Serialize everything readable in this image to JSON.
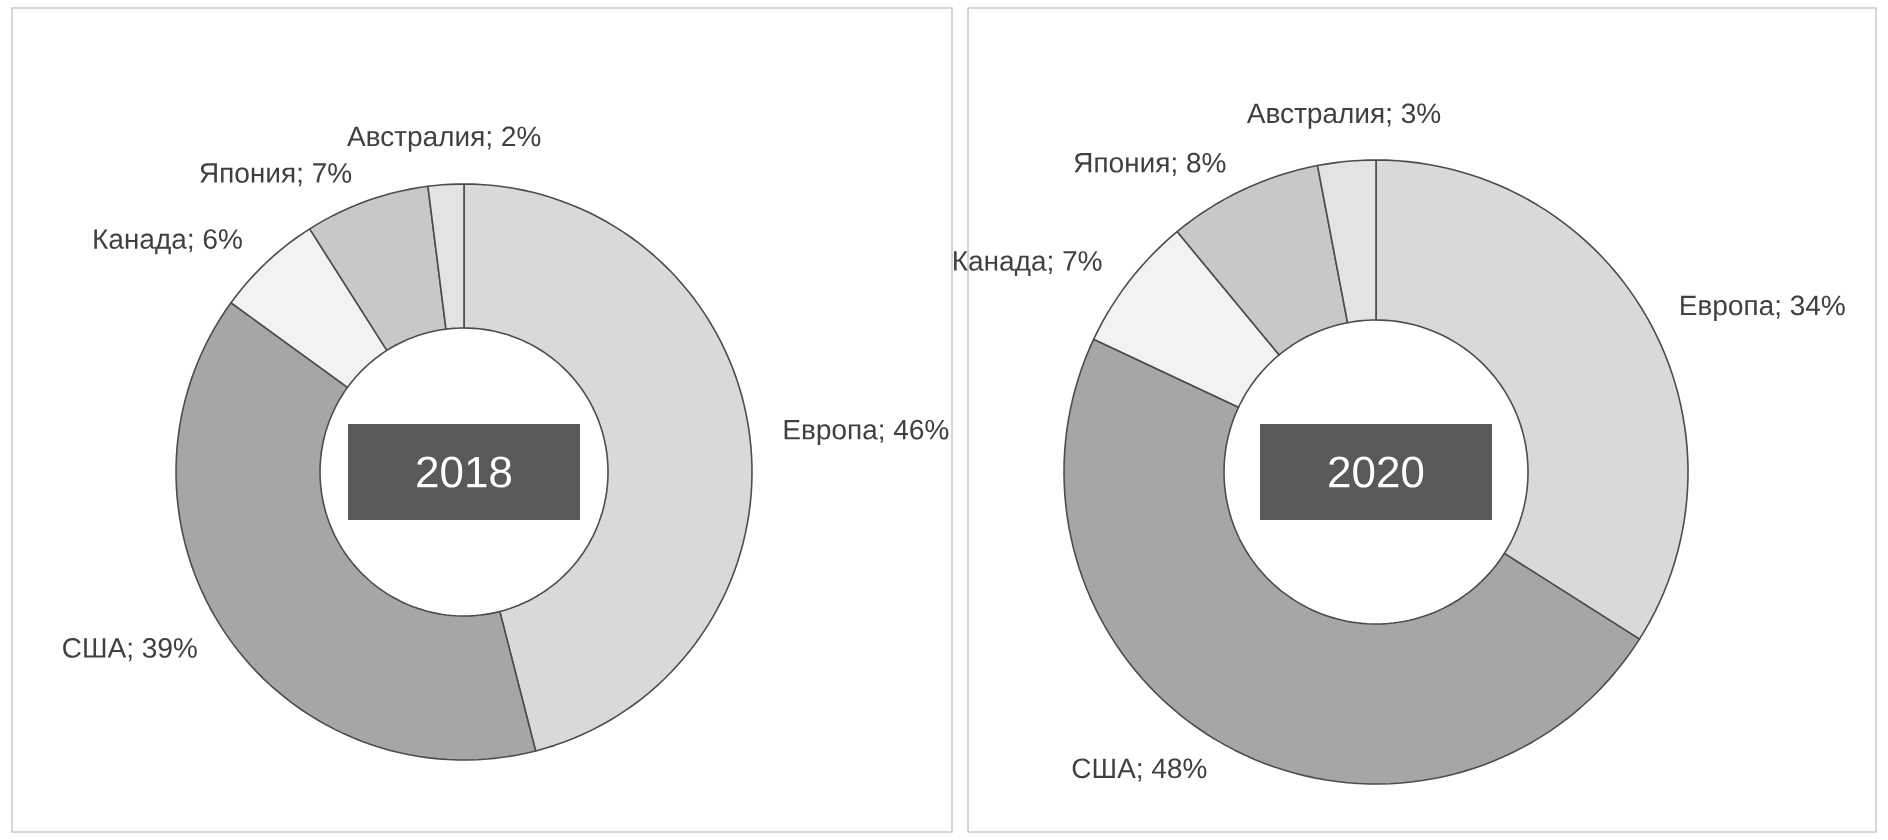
{
  "chart_data": [
    {
      "type": "donut",
      "title": "2018",
      "categories": [
        "Европа",
        "США",
        "Канада",
        "Япония",
        "Австралия"
      ],
      "values": [
        46,
        39,
        6,
        7,
        2
      ],
      "value_labels": [
        "; 46%",
        "; 39%",
        "; 6%",
        "; 7%",
        "; 2%"
      ],
      "colors": [
        "#d9d9d9",
        "#a6a6a6",
        "#f2f2f2",
        "#c8c8c8",
        "#e3e3e3"
      ]
    },
    {
      "type": "donut",
      "title": "2020",
      "categories": [
        "Европа",
        "США",
        "Канада",
        "Япония",
        "Австралия"
      ],
      "values": [
        34,
        48,
        7,
        8,
        3
      ],
      "value_labels": [
        "; 34%",
        "; 48%",
        "; 7%",
        "; 8%",
        "; 3%"
      ],
      "colors": [
        "#d9d9d9",
        "#a6a6a6",
        "#f2f2f2",
        "#c8c8c8",
        "#e3e3e3"
      ]
    }
  ]
}
